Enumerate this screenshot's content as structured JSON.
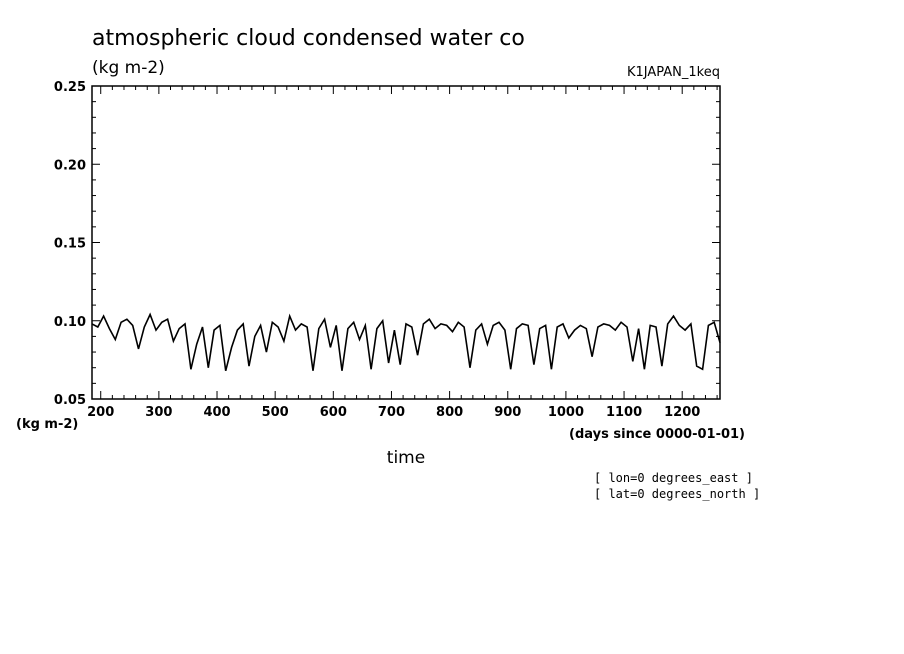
{
  "chart_data": {
    "type": "line",
    "title": "atmospheric cloud condensed water co",
    "units": "(kg m-2)",
    "experiment": "K1JAPAN_1keq",
    "ylabel": "(kg m-2)",
    "xlabel": "time",
    "xunits": "(days since 0000-01-01)",
    "xlim": [
      185,
      1265
    ],
    "ylim": [
      0.05,
      0.25
    ],
    "xticks": [
      200,
      300,
      400,
      500,
      600,
      700,
      800,
      900,
      1000,
      1100,
      1200
    ],
    "yticks": [
      "0.05",
      "0.10",
      "0.15",
      "0.20",
      "0.25"
    ],
    "grid": false,
    "annotations": [
      "[ lon=0 degrees_east ]",
      "[ lat=0 degrees_north ]"
    ],
    "series": [
      {
        "color": "#000000",
        "x": [
          185,
          195,
          205,
          215,
          225,
          235,
          245,
          255,
          265,
          275,
          285,
          295,
          305,
          315,
          325,
          335,
          345,
          355,
          365,
          375,
          385,
          395,
          405,
          415,
          425,
          435,
          445,
          455,
          465,
          475,
          485,
          495,
          505,
          515,
          525,
          535,
          545,
          555,
          565,
          575,
          585,
          595,
          605,
          615,
          625,
          635,
          645,
          655,
          665,
          675,
          685,
          695,
          705,
          715,
          725,
          735,
          745,
          755,
          765,
          775,
          785,
          795,
          805,
          815,
          825,
          835,
          845,
          855,
          865,
          875,
          885,
          895,
          905,
          915,
          925,
          935,
          945,
          955,
          965,
          975,
          985,
          995,
          1005,
          1015,
          1025,
          1035,
          1045,
          1055,
          1065,
          1075,
          1085,
          1095,
          1105,
          1115,
          1125,
          1135,
          1145,
          1155,
          1165,
          1175,
          1185,
          1195,
          1205,
          1215,
          1225,
          1235,
          1245,
          1255,
          1265
        ],
        "y": [
          0.098,
          0.096,
          0.103,
          0.095,
          0.088,
          0.099,
          0.101,
          0.097,
          0.082,
          0.096,
          0.104,
          0.094,
          0.099,
          0.101,
          0.087,
          0.095,
          0.098,
          0.069,
          0.085,
          0.096,
          0.07,
          0.094,
          0.097,
          0.068,
          0.083,
          0.094,
          0.098,
          0.071,
          0.09,
          0.097,
          0.08,
          0.099,
          0.096,
          0.087,
          0.103,
          0.094,
          0.098,
          0.096,
          0.068,
          0.095,
          0.101,
          0.083,
          0.097,
          0.068,
          0.095,
          0.099,
          0.088,
          0.097,
          0.069,
          0.095,
          0.1,
          0.073,
          0.094,
          0.072,
          0.098,
          0.096,
          0.078,
          0.098,
          0.101,
          0.095,
          0.098,
          0.097,
          0.093,
          0.099,
          0.096,
          0.07,
          0.094,
          0.098,
          0.085,
          0.097,
          0.099,
          0.094,
          0.069,
          0.095,
          0.098,
          0.097,
          0.072,
          0.095,
          0.097,
          0.069,
          0.096,
          0.098,
          0.089,
          0.094,
          0.097,
          0.095,
          0.077,
          0.096,
          0.098,
          0.097,
          0.094,
          0.099,
          0.096,
          0.074,
          0.095,
          0.069,
          0.097,
          0.096,
          0.071,
          0.098,
          0.103,
          0.097,
          0.094,
          0.098,
          0.071,
          0.069,
          0.097,
          0.099,
          0.086
        ]
      }
    ]
  }
}
